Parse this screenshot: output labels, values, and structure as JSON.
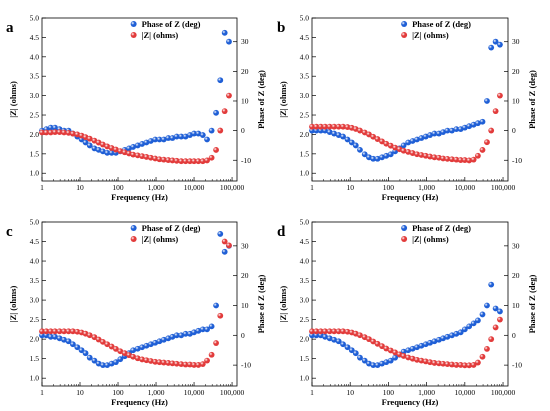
{
  "chart_data": [
    {
      "panel_label": "a",
      "type": "scatter",
      "xlabel": "Frequency (Hz)",
      "ylabel_left": "|Z| (ohms)",
      "ylabel_right": "Phase of Z (deg)",
      "x_scale": "log",
      "x_ticks": [
        "1",
        "10",
        "100",
        "1,000",
        "10,000",
        "100,000"
      ],
      "ylim_left": [
        0.8,
        5.0
      ],
      "y_ticks_left": [
        "1.0",
        "1.5",
        "2.0",
        "2.5",
        "3.0",
        "3.5",
        "4.0",
        "4.5",
        "5.0"
      ],
      "ylim_right": [
        -17,
        38
      ],
      "y_ticks_right": [
        "-10",
        "0",
        "10",
        "20",
        "30"
      ],
      "legend_position": "top-center",
      "series": [
        {
          "name": "Phase of Z (deg)",
          "axis": "right",
          "color": "#1f5fd6",
          "x": [
            1,
            1.3,
            1.7,
            2.2,
            2.9,
            3.8,
            5,
            6.5,
            8.5,
            11,
            14,
            18,
            24,
            31,
            40,
            52,
            68,
            88,
            115,
            150,
            195,
            250,
            330,
            430,
            560,
            730,
            950,
            1230,
            1600,
            2100,
            2700,
            3500,
            4600,
            6000,
            7800,
            10000,
            13000,
            17000,
            22000,
            29000,
            38000,
            49000,
            64000,
            83000
          ],
          "y": [
            0,
            0.5,
            1,
            1,
            0.5,
            0,
            0,
            -1,
            -2,
            -3,
            -4,
            -5,
            -6,
            -6.5,
            -7,
            -7.5,
            -7.5,
            -7.5,
            -7,
            -6.5,
            -6,
            -5.5,
            -5,
            -4.5,
            -4,
            -3.5,
            -3,
            -3,
            -3,
            -2.5,
            -2.5,
            -2,
            -2,
            -2,
            -1.5,
            -1,
            -1,
            -1.5,
            -3,
            0,
            6,
            17,
            33,
            30
          ]
        },
        {
          "name": "|Z| (ohms)",
          "axis": "left",
          "color": "#e23b3b",
          "x": [
            1,
            1.3,
            1.7,
            2.2,
            2.9,
            3.8,
            5,
            6.5,
            8.5,
            11,
            14,
            18,
            24,
            31,
            40,
            52,
            68,
            88,
            115,
            150,
            195,
            250,
            330,
            430,
            560,
            730,
            950,
            1230,
            1600,
            2100,
            2700,
            3500,
            4600,
            6000,
            7800,
            10000,
            13000,
            17000,
            22000,
            29000,
            38000,
            49000,
            64000,
            83000
          ],
          "y": [
            2.05,
            2.05,
            2.05,
            2.06,
            2.06,
            2.05,
            2.04,
            2.02,
            2.0,
            1.97,
            1.93,
            1.89,
            1.84,
            1.79,
            1.74,
            1.69,
            1.65,
            1.61,
            1.57,
            1.54,
            1.51,
            1.48,
            1.46,
            1.44,
            1.42,
            1.4,
            1.38,
            1.36,
            1.35,
            1.34,
            1.33,
            1.32,
            1.31,
            1.31,
            1.31,
            1.31,
            1.31,
            1.31,
            1.33,
            1.4,
            1.6,
            2.1,
            2.6,
            3.0
          ]
        }
      ]
    },
    {
      "panel_label": "b",
      "type": "scatter",
      "xlabel": "Frequency (Hz)",
      "ylabel_left": "|Z| (ohms)",
      "ylabel_right": "Phase of Z (deg)",
      "x_scale": "log",
      "x_ticks": [
        "1",
        "10",
        "100",
        "1,000",
        "10,000",
        "100,000"
      ],
      "ylim_left": [
        0.8,
        5.0
      ],
      "y_ticks_left": [
        "1.0",
        "1.5",
        "2.0",
        "2.5",
        "3.0",
        "3.5",
        "4.0",
        "4.5",
        "5.0"
      ],
      "ylim_right": [
        -17,
        38
      ],
      "y_ticks_right": [
        "-10",
        "0",
        "10",
        "20",
        "30"
      ],
      "legend_position": "top-center",
      "series": [
        {
          "name": "Phase of Z (deg)",
          "axis": "right",
          "color": "#1f5fd6",
          "x": [
            1,
            1.3,
            1.7,
            2.2,
            2.9,
            3.8,
            5,
            6.5,
            8.5,
            11,
            14,
            18,
            24,
            31,
            40,
            52,
            68,
            88,
            115,
            150,
            195,
            250,
            330,
            430,
            560,
            730,
            950,
            1230,
            1600,
            2100,
            2700,
            3500,
            4600,
            6000,
            7800,
            10000,
            13000,
            17000,
            22000,
            29000,
            38000,
            49000,
            64000,
            83000
          ],
          "y": [
            0,
            0,
            0,
            0,
            -0.5,
            -1,
            -1.5,
            -2,
            -3,
            -4,
            -5,
            -6.5,
            -8,
            -9,
            -9.5,
            -9.5,
            -9,
            -8.5,
            -8,
            -7,
            -6,
            -5,
            -4,
            -3.5,
            -3,
            -2.5,
            -2,
            -1.5,
            -1,
            -1,
            -0.5,
            0,
            0,
            0.5,
            0.5,
            1,
            1.5,
            2,
            2.5,
            3,
            10,
            28,
            30,
            29
          ]
        },
        {
          "name": "|Z| (ohms)",
          "axis": "left",
          "color": "#e23b3b",
          "x": [
            1,
            1.3,
            1.7,
            2.2,
            2.9,
            3.8,
            5,
            6.5,
            8.5,
            11,
            14,
            18,
            24,
            31,
            40,
            52,
            68,
            88,
            115,
            150,
            195,
            250,
            330,
            430,
            560,
            730,
            950,
            1230,
            1600,
            2100,
            2700,
            3500,
            4600,
            6000,
            7800,
            10000,
            13000,
            17000,
            22000,
            29000,
            38000,
            49000,
            64000,
            83000
          ],
          "y": [
            2.2,
            2.2,
            2.2,
            2.2,
            2.2,
            2.2,
            2.2,
            2.2,
            2.19,
            2.17,
            2.14,
            2.1,
            2.05,
            2.0,
            1.94,
            1.88,
            1.82,
            1.76,
            1.71,
            1.66,
            1.62,
            1.58,
            1.55,
            1.52,
            1.49,
            1.47,
            1.45,
            1.43,
            1.41,
            1.4,
            1.38,
            1.37,
            1.36,
            1.35,
            1.34,
            1.34,
            1.33,
            1.35,
            1.45,
            1.6,
            1.8,
            2.1,
            2.6,
            3.0
          ]
        }
      ]
    },
    {
      "panel_label": "c",
      "type": "scatter",
      "xlabel": "Frequency (Hz)",
      "ylabel_left": "|Z| (ohms)",
      "ylabel_right": "Phase of Z (deg)",
      "x_scale": "log",
      "x_ticks": [
        "1",
        "10",
        "100",
        "1,000",
        "10,000",
        "100,000"
      ],
      "ylim_left": [
        0.8,
        5.0
      ],
      "y_ticks_left": [
        "1.0",
        "1.5",
        "2.0",
        "2.5",
        "3.0",
        "3.5",
        "4.0",
        "4.5",
        "5.0"
      ],
      "ylim_right": [
        -17,
        38
      ],
      "y_ticks_right": [
        "-10",
        "0",
        "10",
        "20",
        "30"
      ],
      "legend_position": "top-center",
      "series": [
        {
          "name": "Phase of Z (deg)",
          "axis": "right",
          "color": "#1f5fd6",
          "x": [
            1,
            1.3,
            1.7,
            2.2,
            2.9,
            3.8,
            5,
            6.5,
            8.5,
            11,
            14,
            18,
            24,
            31,
            40,
            52,
            68,
            88,
            115,
            150,
            195,
            250,
            330,
            430,
            560,
            730,
            950,
            1230,
            1600,
            2100,
            2700,
            3500,
            4600,
            6000,
            7800,
            10000,
            13000,
            17000,
            22000,
            29000,
            38000,
            49000,
            64000,
            83000
          ],
          "y": [
            0,
            0,
            -0.5,
            -0.5,
            -1,
            -1.5,
            -2,
            -3,
            -4,
            -5,
            -6,
            -7.5,
            -8.5,
            -9.5,
            -10,
            -10,
            -9.5,
            -9,
            -8,
            -7,
            -6,
            -5,
            -4.5,
            -4,
            -3.5,
            -3,
            -2.5,
            -2,
            -1.5,
            -1,
            -0.5,
            0,
            0,
            0.5,
            0.5,
            1,
            1.5,
            2,
            2,
            3,
            10,
            34,
            28,
            30
          ]
        },
        {
          "name": "|Z| (ohms)",
          "axis": "left",
          "color": "#e23b3b",
          "x": [
            1,
            1.3,
            1.7,
            2.2,
            2.9,
            3.8,
            5,
            6.5,
            8.5,
            11,
            14,
            18,
            24,
            31,
            40,
            52,
            68,
            88,
            115,
            150,
            195,
            250,
            330,
            430,
            560,
            730,
            950,
            1230,
            1600,
            2100,
            2700,
            3500,
            4600,
            6000,
            7800,
            10000,
            13000,
            17000,
            22000,
            29000,
            38000,
            49000,
            64000,
            83000
          ],
          "y": [
            2.2,
            2.2,
            2.2,
            2.2,
            2.2,
            2.2,
            2.2,
            2.2,
            2.19,
            2.17,
            2.14,
            2.1,
            2.05,
            1.99,
            1.93,
            1.87,
            1.81,
            1.75,
            1.69,
            1.64,
            1.59,
            1.55,
            1.51,
            1.48,
            1.46,
            1.44,
            1.42,
            1.41,
            1.4,
            1.39,
            1.38,
            1.37,
            1.36,
            1.35,
            1.35,
            1.34,
            1.34,
            1.36,
            1.45,
            1.6,
            1.9,
            2.6,
            4.5,
            4.4
          ]
        }
      ]
    },
    {
      "panel_label": "d",
      "type": "scatter",
      "xlabel": "Frequency (Hz)",
      "ylabel_left": "|Z| (ohms)",
      "ylabel_right": "Phase of Z (deg)",
      "x_scale": "log",
      "x_ticks": [
        "1",
        "10",
        "100",
        "1,000",
        "10,000",
        "100,000"
      ],
      "ylim_left": [
        0.8,
        5.0
      ],
      "y_ticks_left": [
        "1.0",
        "1.5",
        "2.0",
        "2.5",
        "3.0",
        "3.5",
        "4.0",
        "4.5",
        "5.0"
      ],
      "ylim_right": [
        -17,
        38
      ],
      "y_ticks_right": [
        "-10",
        "0",
        "10",
        "20",
        "30"
      ],
      "legend_position": "top-center",
      "series": [
        {
          "name": "Phase of Z (deg)",
          "axis": "right",
          "color": "#1f5fd6",
          "x": [
            1,
            1.3,
            1.7,
            2.2,
            2.9,
            3.8,
            5,
            6.5,
            8.5,
            11,
            14,
            18,
            24,
            31,
            40,
            52,
            68,
            88,
            115,
            150,
            195,
            250,
            330,
            430,
            560,
            730,
            950,
            1230,
            1600,
            2100,
            2700,
            3500,
            4600,
            6000,
            7800,
            10000,
            13000,
            17000,
            22000,
            29000,
            38000,
            49000,
            64000,
            83000
          ],
          "y": [
            0,
            0,
            0,
            -0.5,
            -1,
            -1.5,
            -2,
            -3,
            -4,
            -5,
            -6,
            -7.5,
            -8.5,
            -9.5,
            -10,
            -10,
            -9.5,
            -9,
            -8.5,
            -7.5,
            -6.5,
            -5.5,
            -5,
            -4.5,
            -4,
            -3.5,
            -3,
            -2.5,
            -2,
            -1.5,
            -1,
            -0.5,
            0,
            0.5,
            1,
            2,
            3,
            4,
            5,
            7,
            10,
            17,
            9,
            8
          ]
        },
        {
          "name": "|Z| (ohms)",
          "axis": "left",
          "color": "#e23b3b",
          "x": [
            1,
            1.3,
            1.7,
            2.2,
            2.9,
            3.8,
            5,
            6.5,
            8.5,
            11,
            14,
            18,
            24,
            31,
            40,
            52,
            68,
            88,
            115,
            150,
            195,
            250,
            330,
            430,
            560,
            730,
            950,
            1230,
            1600,
            2100,
            2700,
            3500,
            4600,
            6000,
            7800,
            10000,
            13000,
            17000,
            22000,
            29000,
            38000,
            49000,
            64000,
            83000
          ],
          "y": [
            2.2,
            2.2,
            2.2,
            2.2,
            2.2,
            2.2,
            2.2,
            2.2,
            2.19,
            2.17,
            2.14,
            2.1,
            2.05,
            2.0,
            1.94,
            1.88,
            1.82,
            1.76,
            1.71,
            1.66,
            1.61,
            1.57,
            1.53,
            1.5,
            1.47,
            1.45,
            1.43,
            1.41,
            1.39,
            1.38,
            1.37,
            1.36,
            1.35,
            1.34,
            1.34,
            1.33,
            1.33,
            1.34,
            1.4,
            1.55,
            1.75,
            2.0,
            2.3,
            2.5
          ]
        }
      ]
    }
  ]
}
